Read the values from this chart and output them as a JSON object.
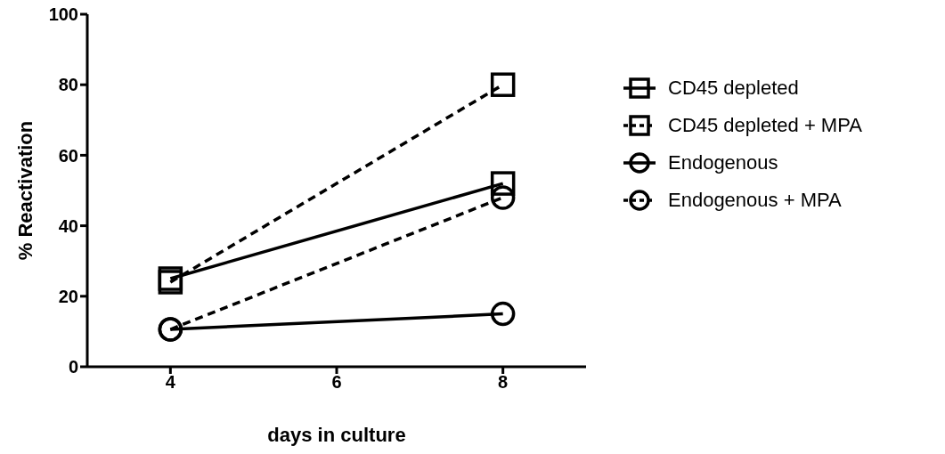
{
  "chart_data": {
    "type": "line",
    "xlabel": "days in culture",
    "ylabel": "% Reactivation",
    "x": [
      4,
      8
    ],
    "xlim": [
      3,
      9
    ],
    "xticks": [
      4,
      6,
      8
    ],
    "ylim": [
      0,
      100
    ],
    "yticks": [
      0,
      20,
      40,
      60,
      80,
      100
    ],
    "grid": false,
    "legend": "right",
    "series": [
      {
        "name": "CD45 depleted",
        "color": "#000000",
        "values": [
          25,
          52
        ],
        "marker": "square",
        "line_style": "solid"
      },
      {
        "name": "CD45 depleted + MPA",
        "color": "#000000",
        "values": [
          24,
          80
        ],
        "marker": "square",
        "line_style": "dashed"
      },
      {
        "name": "Endogenous",
        "color": "#000000",
        "values": [
          10.6,
          15
        ],
        "marker": "circle",
        "line_style": "solid"
      },
      {
        "name": "Endogenous + MPA",
        "color": "#000000",
        "values": [
          10.6,
          48
        ],
        "marker": "circle",
        "line_style": "dashed"
      }
    ]
  }
}
